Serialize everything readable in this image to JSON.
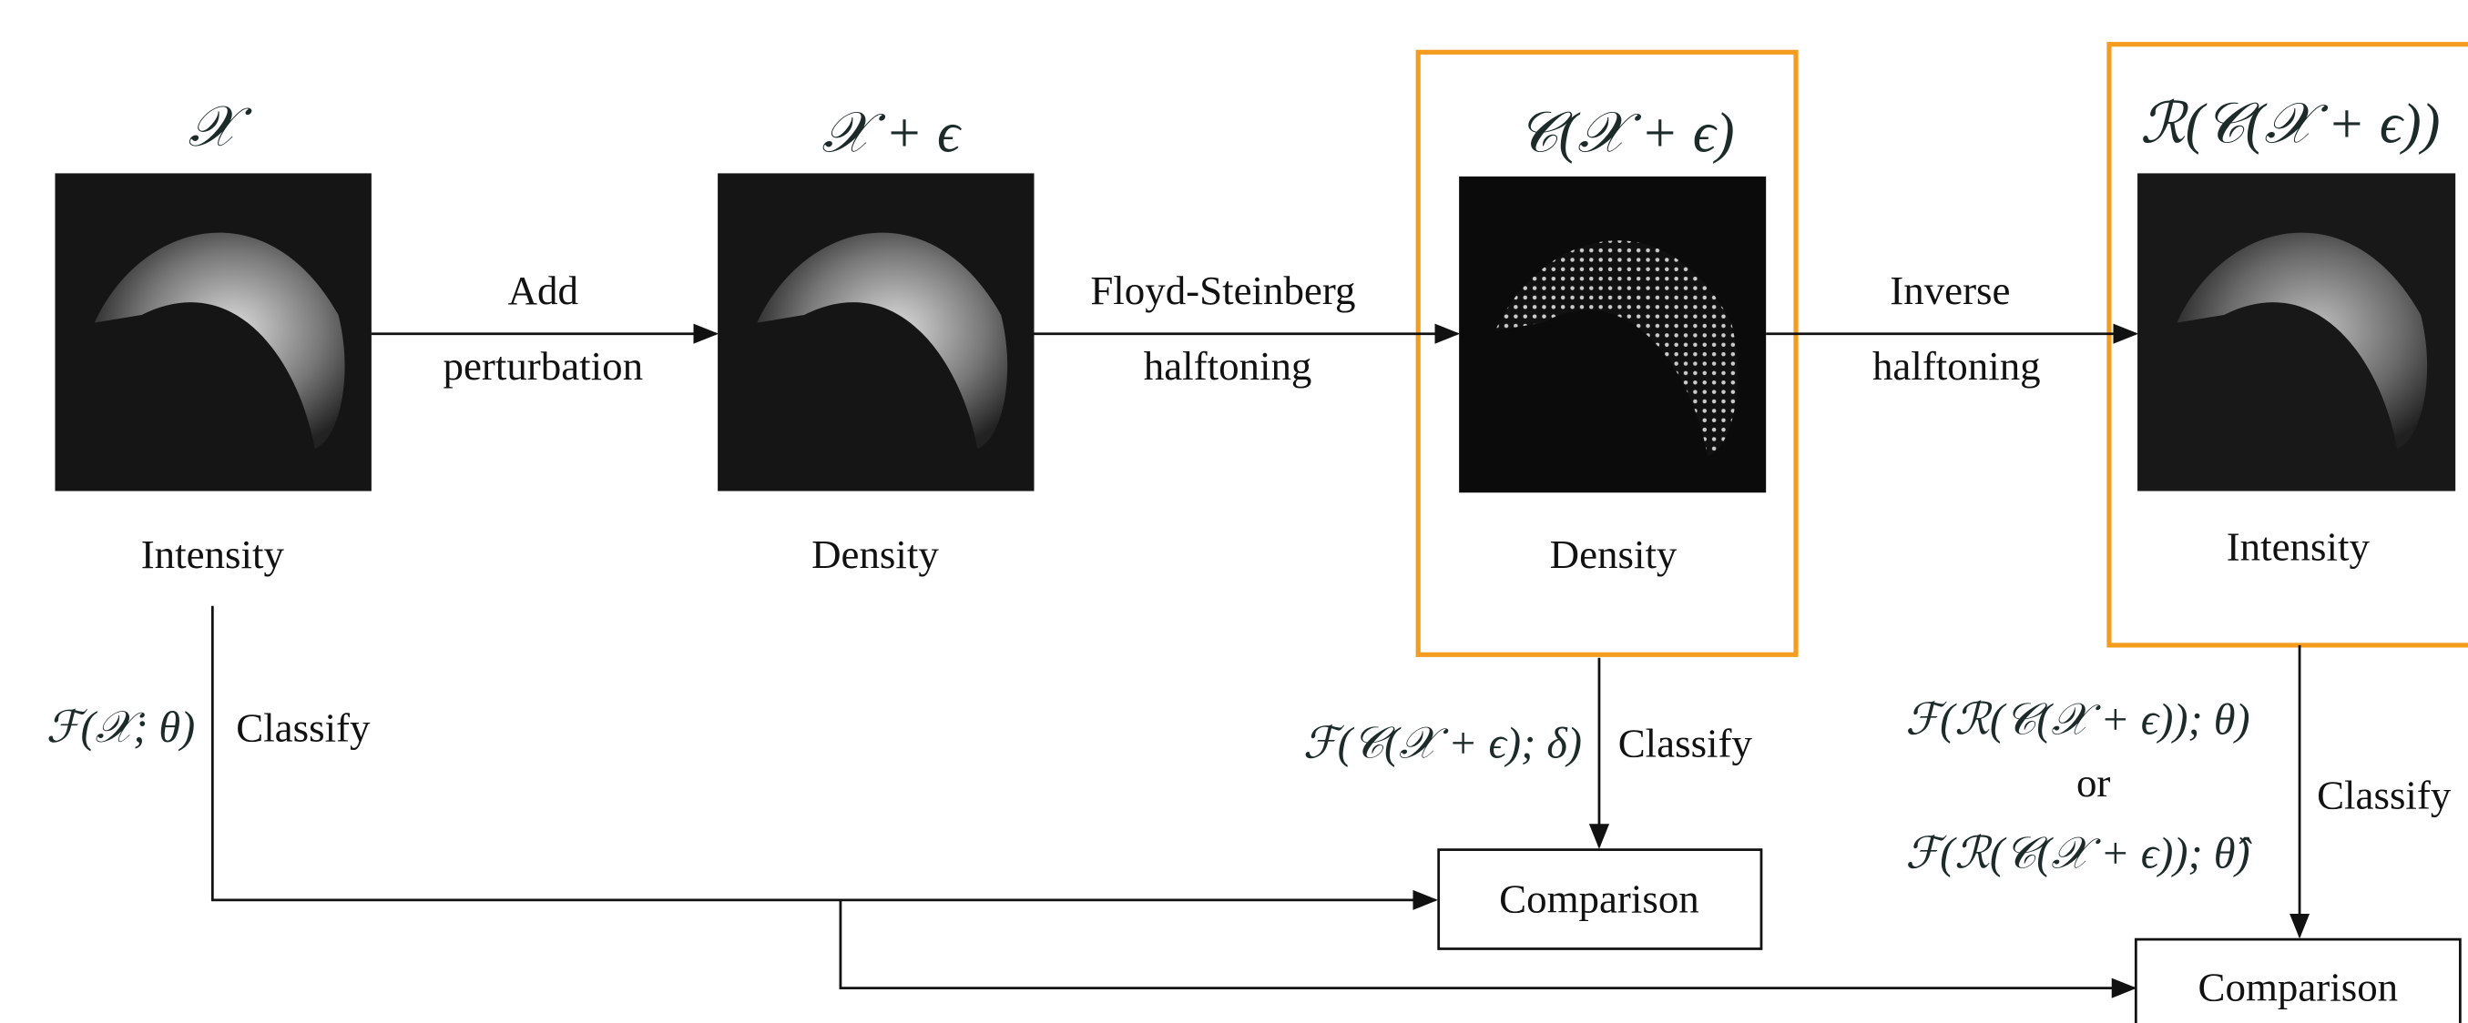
{
  "nodes": [
    {
      "title": "𝒳",
      "caption": "Intensity"
    },
    {
      "title": "𝒳 + ϵ",
      "caption": "Density"
    },
    {
      "title": "𝒞(𝒳 + ϵ)",
      "caption": "Density"
    },
    {
      "title": "ℛ(𝒞(𝒳 + ϵ))",
      "caption": "Intensity"
    }
  ],
  "edges": [
    {
      "label_lines": [
        "Add",
        "perturbation"
      ]
    },
    {
      "label_lines": [
        "Floyd-Steinberg",
        "halftoning"
      ]
    },
    {
      "label_lines": [
        "Inverse",
        "halftoning"
      ]
    }
  ],
  "classify": [
    {
      "formula_lines": [
        "ℱ(𝒳; θ)"
      ],
      "label": "Classify"
    },
    {
      "formula_lines": [
        "ℱ(𝒞(𝒳 + ϵ); δ)"
      ],
      "label": "Classify"
    },
    {
      "formula_lines": [
        "ℱ(ℛ(𝒞(𝒳 + ϵ)); θ)",
        "or",
        "ℱ(ℛ(𝒞(𝒳 + ϵ)); θ̂)"
      ],
      "label": "Classify"
    }
  ],
  "comparisons": [
    "Comparison",
    "Comparison"
  ]
}
